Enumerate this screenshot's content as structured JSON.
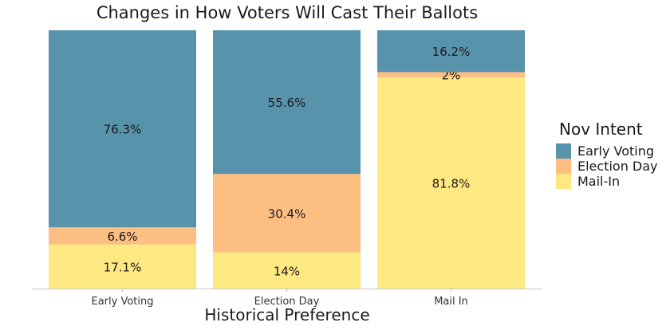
{
  "chart_data": {
    "type": "bar",
    "stacked": true,
    "normalized": true,
    "title": "Changes in How Voters Will Cast Their Ballots",
    "xlabel": "Historical Preference",
    "ylabel": "",
    "categories": [
      "Early Voting",
      "Election Day",
      "Mail In"
    ],
    "ylim": [
      0,
      100
    ],
    "legend_title": "Nov Intent",
    "legend_position": "right",
    "grid": false,
    "series": [
      {
        "name": "Early Voting",
        "color": "#5793ab",
        "values": [
          76.3,
          55.6,
          16.2
        ],
        "labels": [
          "76.3%",
          "55.6%",
          "16.2%"
        ]
      },
      {
        "name": "Election Day",
        "color": "#fdbe82",
        "values": [
          6.6,
          30.4,
          2
        ],
        "labels": [
          "6.6%",
          "30.4%",
          "2%"
        ]
      },
      {
        "name": "Mail-In",
        "color": "#fde882",
        "values": [
          17.1,
          14,
          81.8
        ],
        "labels": [
          "17.1%",
          "14%",
          "81.8%"
        ]
      }
    ]
  }
}
